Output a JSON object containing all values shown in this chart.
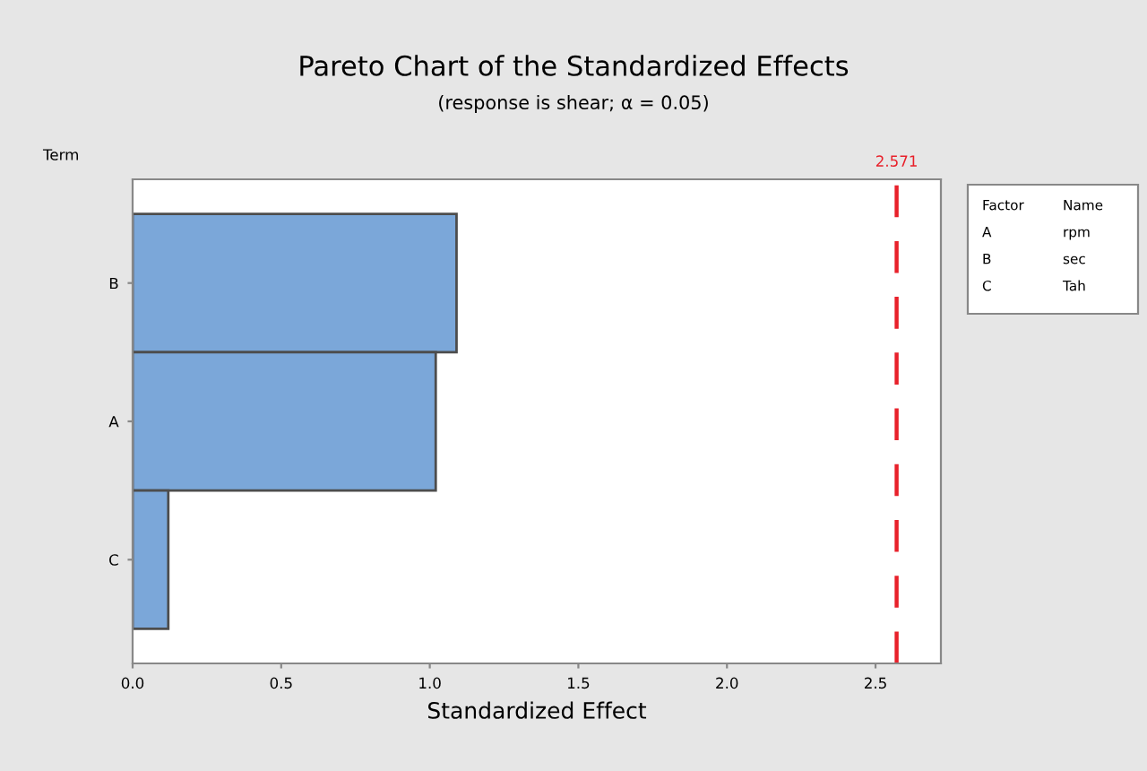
{
  "chart_data": {
    "type": "bar",
    "orientation": "horizontal",
    "title": "Pareto Chart of the Standardized Effects",
    "subtitle": "(response is shear; α = 0.05)",
    "xlabel": "Standardized Effect",
    "ylabel": "Term",
    "categories": [
      "B",
      "A",
      "C"
    ],
    "values": [
      1.09,
      1.02,
      0.12
    ],
    "color": "#7ba7d9",
    "xlim": [
      0,
      2.72
    ],
    "xticks": [
      {
        "value": 0,
        "label": "0.0"
      },
      {
        "value": 0.5,
        "label": "0.5"
      },
      {
        "value": 1.0,
        "label": "1.0"
      },
      {
        "value": 1.5,
        "label": "1.5"
      },
      {
        "value": 2.0,
        "label": "2.0"
      },
      {
        "value": 2.5,
        "label": "2.5"
      }
    ],
    "ref_lines": [
      {
        "axis": "x",
        "value": 2.571,
        "label": "2.571",
        "color": "#e8202a",
        "line_style": "dashed"
      }
    ],
    "annotations": [
      "Factor",
      "Name",
      "A",
      "rpm",
      "B",
      "sec",
      "C",
      "Tah"
    ],
    "grid": false,
    "legend": false
  }
}
